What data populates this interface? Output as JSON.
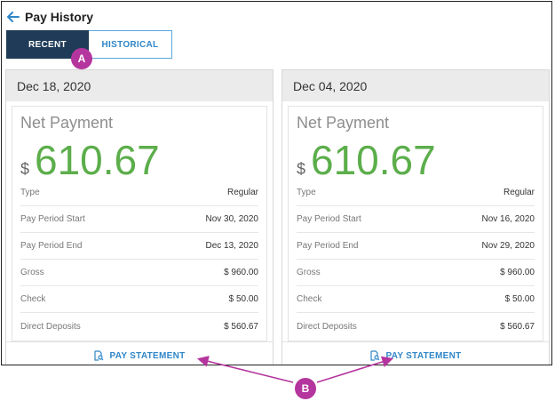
{
  "header": {
    "title": "Pay History",
    "back_icon": "arrow-left-icon"
  },
  "tabs": [
    {
      "label": "RECENT",
      "active": true
    },
    {
      "label": "HISTORICAL",
      "active": false
    }
  ],
  "cards": [
    {
      "date": "Dec 18, 2020",
      "net_label": "Net Payment",
      "currency": "$",
      "amount": "610.67",
      "rows": [
        {
          "label": "Type",
          "value": "Regular"
        },
        {
          "label": "Pay Period Start",
          "value": "Nov 30, 2020"
        },
        {
          "label": "Pay Period End",
          "value": "Dec 13, 2020"
        },
        {
          "label": "Gross",
          "value": "$ 960.00"
        },
        {
          "label": "Check",
          "value": "$ 50.00"
        },
        {
          "label": "Direct Deposits",
          "value": "$ 560.67"
        }
      ],
      "statement_label": "PAY STATEMENT"
    },
    {
      "date": "Dec 04, 2020",
      "net_label": "Net Payment",
      "currency": "$",
      "amount": "610.67",
      "rows": [
        {
          "label": "Type",
          "value": "Regular"
        },
        {
          "label": "Pay Period Start",
          "value": "Nov 16, 2020"
        },
        {
          "label": "Pay Period End",
          "value": "Nov 29, 2020"
        },
        {
          "label": "Gross",
          "value": "$ 960.00"
        },
        {
          "label": "Check",
          "value": "$ 50.00"
        },
        {
          "label": "Direct Deposits",
          "value": "$ 560.67"
        }
      ],
      "statement_label": "PAY STATEMENT"
    }
  ],
  "callouts": {
    "a": "A",
    "b": "B"
  },
  "colors": {
    "active_tab": "#1f3b57",
    "link": "#2f86c8",
    "amount": "#5cae4b",
    "callout": "#b5359e"
  }
}
